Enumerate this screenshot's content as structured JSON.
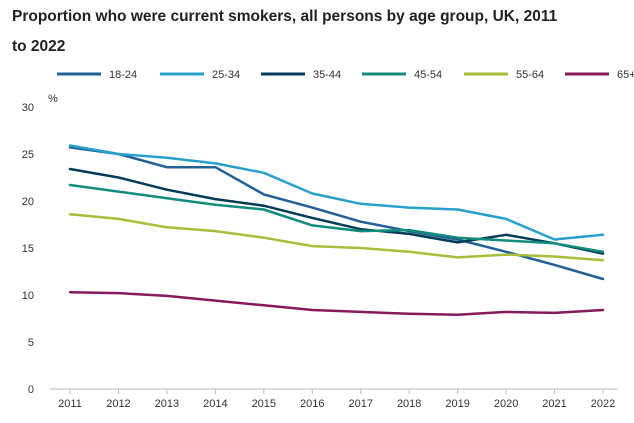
{
  "chart_data": {
    "type": "line",
    "title": "Proportion who were current smokers, all persons by age group, UK, 2011 to 2022",
    "ylabel": "%",
    "xlabel": "",
    "ylim": [
      0,
      30
    ],
    "yticks": [
      0,
      5,
      10,
      15,
      20,
      25,
      30
    ],
    "categories": [
      "2011",
      "2012",
      "2013",
      "2014",
      "2015",
      "2016",
      "2017",
      "2018",
      "2019",
      "2020",
      "2021",
      "2022"
    ],
    "grid": false,
    "legend": "top",
    "series": [
      {
        "name": "18-24",
        "color": "#206095",
        "values": [
          25.7,
          25.0,
          23.6,
          23.6,
          20.7,
          19.3,
          17.8,
          16.8,
          15.9,
          14.6,
          13.2,
          11.7
        ]
      },
      {
        "name": "25-34",
        "color": "#27a0cc",
        "values": [
          25.9,
          25.0,
          24.6,
          24.0,
          23.0,
          20.8,
          19.7,
          19.3,
          19.1,
          18.1,
          15.9,
          16.4
        ]
      },
      {
        "name": "35-44",
        "color": "#003c57",
        "values": [
          23.4,
          22.5,
          21.2,
          20.2,
          19.5,
          18.2,
          17.0,
          16.5,
          15.6,
          16.4,
          15.5,
          14.4
        ]
      },
      {
        "name": "45-54",
        "color": "#118c7b",
        "values": [
          21.7,
          21.0,
          20.3,
          19.6,
          19.1,
          17.4,
          16.8,
          16.9,
          16.1,
          15.8,
          15.5,
          14.6
        ]
      },
      {
        "name": "55-64",
        "color": "#a8bd3a",
        "values": [
          18.6,
          18.1,
          17.2,
          16.8,
          16.1,
          15.2,
          15.0,
          14.6,
          14.0,
          14.3,
          14.1,
          13.7
        ]
      },
      {
        "name": "65+",
        "color": "#871a5b",
        "values": [
          10.3,
          10.2,
          9.9,
          9.4,
          8.9,
          8.4,
          8.2,
          8.0,
          7.9,
          8.2,
          8.1,
          8.4
        ]
      }
    ]
  }
}
